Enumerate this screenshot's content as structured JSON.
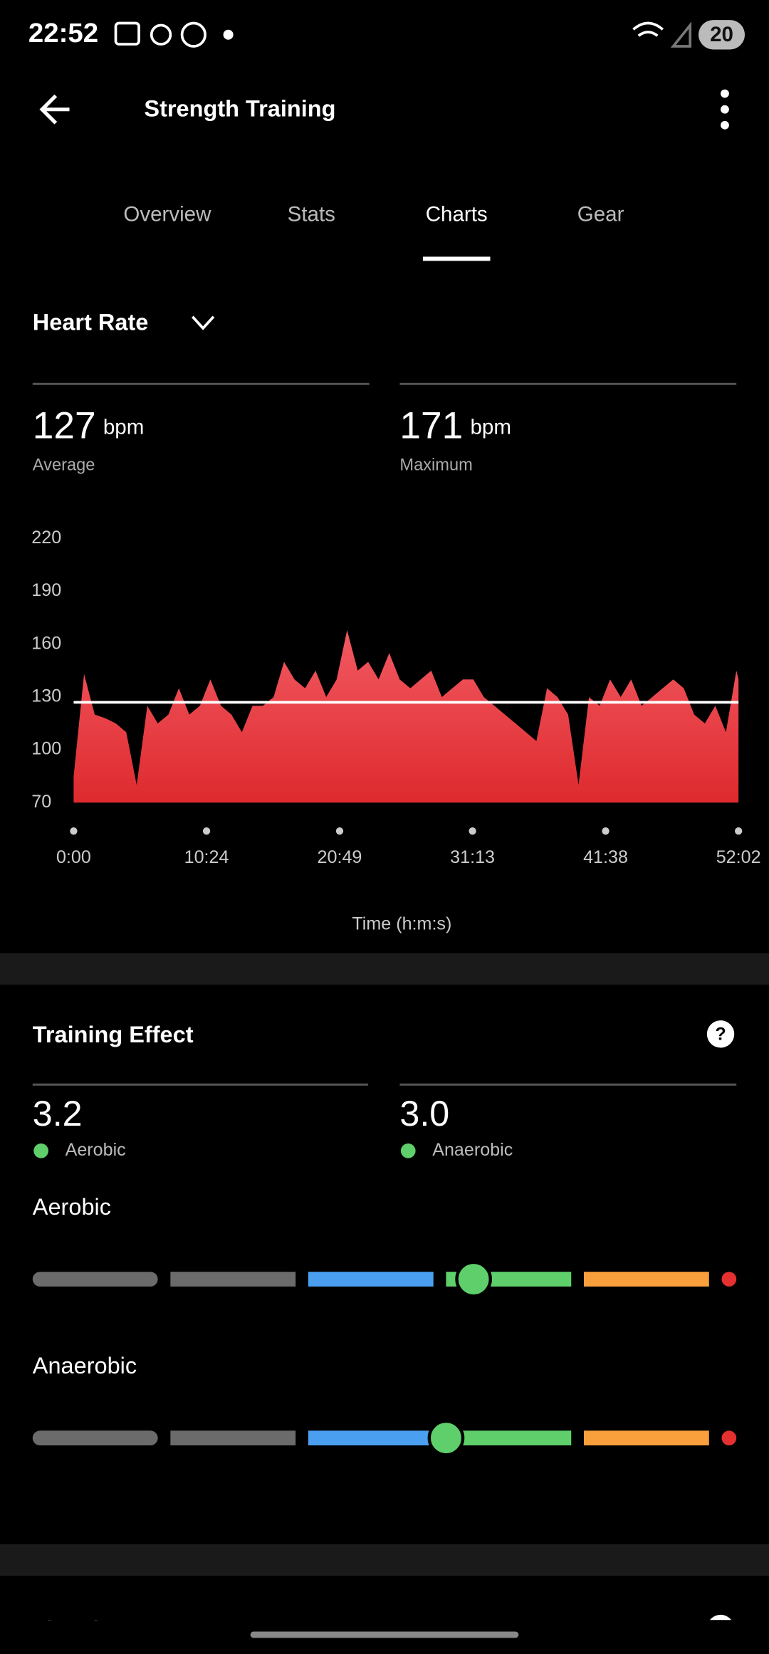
{
  "status_bar": {
    "time": "22:52",
    "battery": "20"
  },
  "header": {
    "title": "Strength Training"
  },
  "tabs": [
    "Overview",
    "Stats",
    "Charts",
    "Gear"
  ],
  "heart_rate": {
    "title": "Heart Rate",
    "stats": [
      {
        "value": 127,
        "unit": "bpm",
        "label": "Average"
      },
      {
        "value": 171,
        "unit": "bpm",
        "label": "Maximum"
      }
    ]
  },
  "chart_data": {
    "type": "area",
    "color": "#e8343c",
    "line_color": "#ffffff",
    "x_label": "Time (h:m:s)",
    "ylim": [
      70,
      220
    ],
    "yticks": [
      70,
      100,
      130,
      160,
      190,
      220
    ],
    "xlim": [
      0,
      3122
    ],
    "xticks": [
      {
        "value": 0,
        "label": "0:00"
      },
      {
        "value": 624,
        "label": "10:24"
      },
      {
        "value": 1249,
        "label": "20:49"
      },
      {
        "value": 1873,
        "label": "31:13"
      },
      {
        "value": 2498,
        "label": "41:38"
      },
      {
        "value": 3122,
        "label": "52:02"
      }
    ],
    "x": [
      0,
      49,
      99,
      148,
      198,
      247,
      296,
      346,
      395,
      445,
      494,
      543,
      593,
      642,
      692,
      741,
      790,
      840,
      889,
      939,
      988,
      1037,
      1087,
      1136,
      1186,
      1235,
      1284,
      1334,
      1383,
      1432,
      1482,
      1531,
      1581,
      1630,
      1679,
      1729,
      1778,
      1828,
      1877,
      1926,
      1976,
      2025,
      2075,
      2124,
      2173,
      2223,
      2272,
      2322,
      2371,
      2420,
      2470,
      2519,
      2569,
      2618,
      2667,
      2717,
      2766,
      2816,
      2865,
      2914,
      2964,
      3013,
      3063,
      3112,
      3122
    ],
    "values": [
      85,
      143,
      120,
      118,
      115,
      110,
      80,
      125,
      115,
      120,
      135,
      120,
      125,
      140,
      125,
      120,
      110,
      125,
      125,
      130,
      150,
      140,
      135,
      145,
      130,
      140,
      168,
      145,
      150,
      140,
      155,
      140,
      135,
      140,
      145,
      130,
      135,
      140,
      140,
      130,
      125,
      120,
      115,
      110,
      105,
      135,
      130,
      120,
      80,
      130,
      125,
      140,
      130,
      140,
      125,
      130,
      135,
      140,
      135,
      120,
      115,
      125,
      110,
      145,
      140
    ]
  },
  "training_effect": {
    "title": "Training Effect",
    "stats": [
      {
        "value": 3.2,
        "label": "3.2",
        "name": "Aerobic"
      },
      {
        "value": 3.0,
        "label": "3.0",
        "name": "Anaerobic"
      }
    ],
    "bars": [
      {
        "label": "Aerobic"
      },
      {
        "label": "Anaerobic"
      }
    ]
  },
  "next_section": {
    "title": "Time in Heart Rate Zones"
  }
}
